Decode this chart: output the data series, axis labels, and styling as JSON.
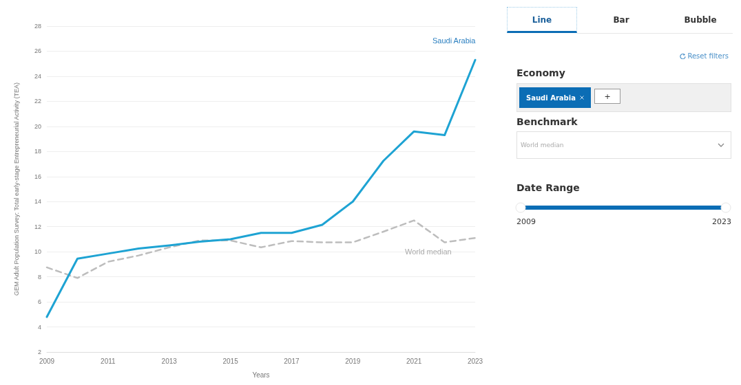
{
  "chart_data": {
    "type": "line",
    "x": [
      2009,
      2010,
      2011,
      2012,
      2013,
      2014,
      2015,
      2016,
      2017,
      2018,
      2019,
      2020,
      2021,
      2022,
      2023
    ],
    "series": [
      {
        "name": "Saudi Arabia",
        "color": "#1ea3d3",
        "line_style": "solid",
        "values": [
          4.8,
          9.45,
          9.85,
          10.25,
          10.5,
          10.8,
          11.0,
          11.5,
          11.5,
          12.15,
          14.0,
          17.25,
          19.6,
          19.3,
          25.3
        ]
      },
      {
        "name": "World median",
        "color": "#bdbdbd",
        "line_style": "dashed",
        "values": [
          8.75,
          7.9,
          9.2,
          9.7,
          10.35,
          10.9,
          10.9,
          10.35,
          10.85,
          10.75,
          10.75,
          11.6,
          12.5,
          10.75,
          11.1
        ]
      }
    ],
    "xlabel": "Years",
    "ylabel": "GEM Adult Population Survey: Total early-stage Entrepreneurial Activity (TEA)",
    "xlim": [
      2009,
      2023
    ],
    "xticks": [
      2009,
      2011,
      2013,
      2015,
      2017,
      2019,
      2021,
      2023
    ],
    "ylim": [
      2,
      28
    ],
    "yticks": [
      2,
      4,
      6,
      8,
      10,
      12,
      14,
      16,
      18,
      20,
      22,
      24,
      26,
      28
    ],
    "grid": "y",
    "marker": "none",
    "annotations": [
      "Line",
      "Bar",
      "Bubble",
      "Reset filters",
      "Economy",
      "Saudi Arabia",
      "+",
      "Benchmark",
      "World median",
      "Date Range",
      "2009",
      "2023"
    ]
  }
}
